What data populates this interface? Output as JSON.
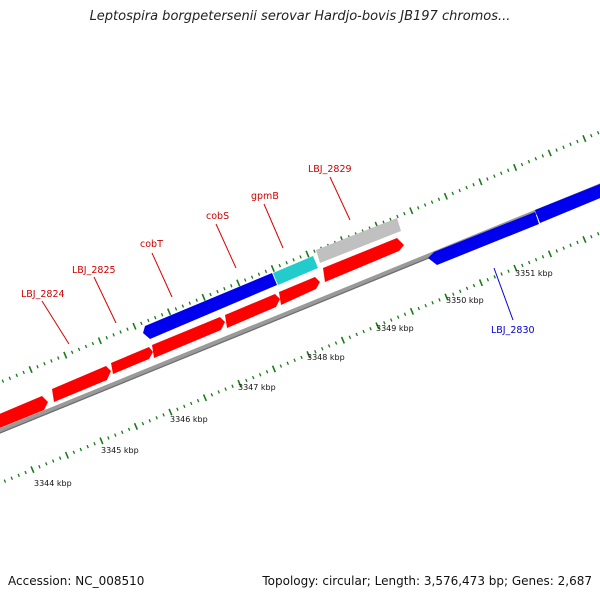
{
  "title": "Leptospira borgpetersenii serovar Hardjo-bovis JB197 chromos...",
  "footer": {
    "accession": "Accession: NC_008510",
    "summary": "Topology: circular; Length: 3,576,473 bp; Genes: 2,687"
  },
  "colors": {
    "forward_gene": "#ff0000",
    "reverse_gene": "#0000ee",
    "other_feature": "#c0c0c0",
    "rna_feature": "#22cccc",
    "backbone": "#8c8c8c",
    "tick": "#1a7a1a",
    "forward_label": "#cc0000",
    "reverse_label": "#0000cc"
  },
  "scale": {
    "unit": "kbp",
    "labels": [
      "3344 kbp",
      "3345 kbp",
      "3346 kbp",
      "3347 kbp",
      "3348 kbp",
      "3349 kbp",
      "3350 kbp",
      "3351 kbp"
    ]
  },
  "gene_labels": {
    "lbj_2824": "LBJ_2824",
    "lbj_2825": "LBJ_2825",
    "cobT": "cobT",
    "cobS": "cobS",
    "gpmB": "gpmB",
    "lbj_2829": "LBJ_2829",
    "lbj_2830": "LBJ_2830"
  }
}
